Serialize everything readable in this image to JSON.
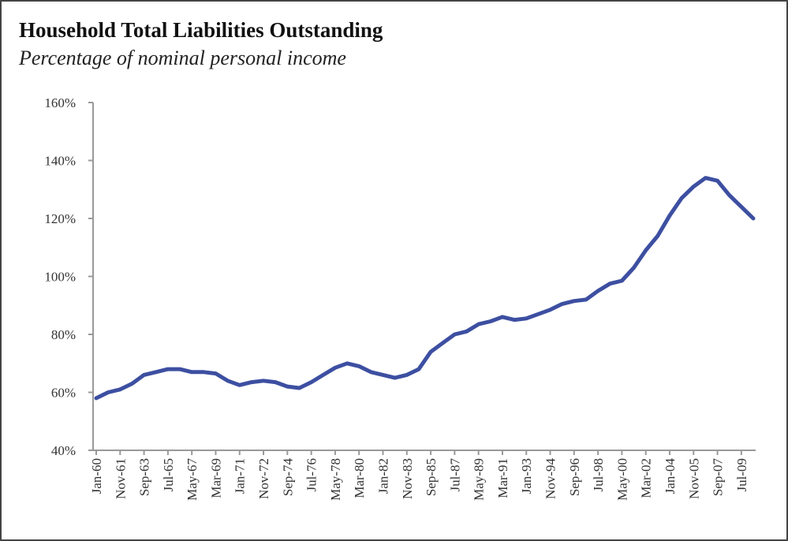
{
  "chart_data": {
    "type": "line",
    "title": "Household Total Liabilities Outstanding",
    "subtitle": "Percentage of nominal personal income",
    "categories": [
      "Jan-60",
      null,
      "Nov-61",
      null,
      "Sep-63",
      null,
      "Jul-65",
      null,
      "May-67",
      null,
      "Mar-69",
      null,
      "Jan-71",
      null,
      "Nov-72",
      null,
      "Sep-74",
      null,
      "Jul-76",
      null,
      "May-78",
      null,
      "Mar-80",
      null,
      "Jan-82",
      null,
      "Nov-83",
      null,
      "Sep-85",
      null,
      "Jul-87",
      null,
      "May-89",
      null,
      "Mar-91",
      null,
      "Jan-93",
      null,
      "Nov-94",
      null,
      "Sep-96",
      null,
      "Jul-98",
      null,
      "May-00",
      null,
      "Mar-02",
      null,
      "Jan-04",
      null,
      "Nov-05",
      null,
      "Sep-07",
      null,
      "Jul-09",
      null
    ],
    "series": [
      {
        "name": "Household Total Liabilities",
        "color": "#3d4fa1",
        "values": [
          58,
          60,
          61,
          63,
          66,
          67,
          68,
          68,
          67,
          67,
          66.5,
          64,
          62.5,
          63.5,
          64,
          63.5,
          62,
          61.5,
          63.5,
          66,
          68.5,
          70,
          69,
          67,
          66,
          65,
          66,
          68,
          74,
          77,
          80,
          81,
          83.5,
          84.5,
          86,
          85,
          85.5,
          87,
          88.5,
          90.5,
          91.5,
          92,
          95,
          97.5,
          98.5,
          103,
          109,
          114,
          121,
          127,
          131,
          134,
          133,
          128,
          124,
          120
        ]
      }
    ],
    "ylim": [
      40,
      160
    ],
    "yticks": [
      {
        "value": 40,
        "label": "40%"
      },
      {
        "value": 60,
        "label": "60%"
      },
      {
        "value": 80,
        "label": "80%"
      },
      {
        "value": 100,
        "label": "100%"
      },
      {
        "value": 120,
        "label": "120%"
      },
      {
        "value": 140,
        "label": "140%"
      },
      {
        "value": 160,
        "label": "160%"
      }
    ]
  }
}
